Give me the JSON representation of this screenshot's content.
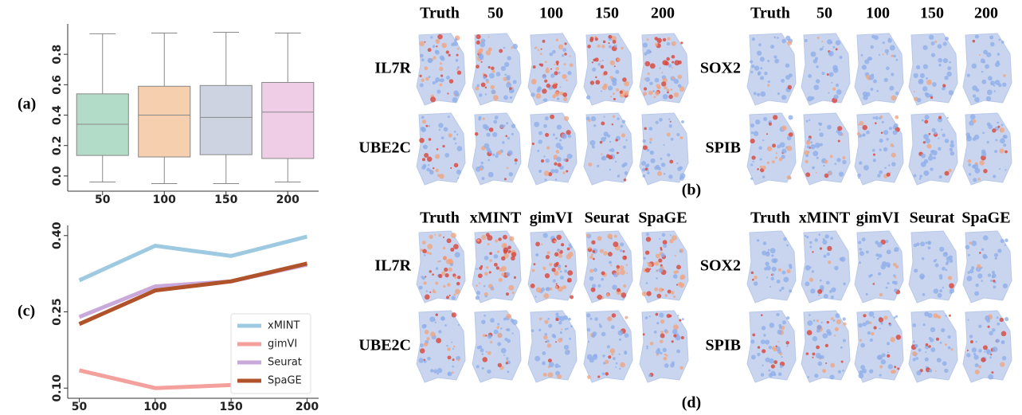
{
  "chart_data": [
    {
      "type": "box",
      "panel_label": "(a)",
      "categories": [
        "50",
        "100",
        "150",
        "200"
      ],
      "colors": [
        "#b3dcc8",
        "#f5cfae",
        "#cdd3e0",
        "#efcde6"
      ],
      "whisker_low": [
        -0.04,
        -0.05,
        -0.05,
        -0.04
      ],
      "q1": [
        0.135,
        0.125,
        0.14,
        0.115
      ],
      "median": [
        0.34,
        0.4,
        0.385,
        0.42
      ],
      "q3": [
        0.54,
        0.59,
        0.595,
        0.615
      ],
      "whisker_high": [
        0.935,
        0.94,
        0.945,
        0.94
      ],
      "ylim": [
        -0.1,
        1.0
      ],
      "yticks": [
        {
          "value": 0,
          "label": "0.0"
        },
        {
          "value": 0.2,
          "label": "0.2"
        },
        {
          "value": 0.4,
          "label": "0.4"
        },
        {
          "value": 0.6,
          "label": "0.6"
        },
        {
          "value": 0.8,
          "label": "0.8"
        }
      ]
    },
    {
      "type": "line",
      "panel_label": "(c)",
      "x": [
        50,
        100,
        150,
        200
      ],
      "xlim": [
        45,
        205
      ],
      "xticks": [
        50,
        100,
        150,
        200
      ],
      "ylim": [
        0.08,
        0.42
      ],
      "yticks": [
        {
          "value": 0.1,
          "label": "0.10"
        },
        {
          "value": 0.25,
          "label": "0.25"
        },
        {
          "value": 0.4,
          "label": "0.40"
        }
      ],
      "legend": "lower right",
      "series": [
        {
          "name": "xMINT",
          "color": "#9ecae1",
          "values": [
            0.312,
            0.38,
            0.36,
            0.398
          ]
        },
        {
          "name": "gimVI",
          "color": "#f4a09c",
          "values": [
            0.135,
            0.1,
            0.106,
            0.112
          ]
        },
        {
          "name": "Seurat",
          "color": "#c9a9d9",
          "values": [
            0.24,
            0.3,
            0.31,
            0.343
          ]
        },
        {
          "name": "SpaGE",
          "color": "#b0532a",
          "values": [
            0.226,
            0.292,
            0.31,
            0.345
          ]
        }
      ]
    }
  ],
  "map_grids": [
    {
      "label": "(b)",
      "columns": [
        "Truth",
        "50",
        "100",
        "150",
        "200"
      ],
      "left_rows": [
        "IL7R",
        "UBE2C"
      ],
      "right_rows": [
        "SOX2",
        "SPIB"
      ]
    },
    {
      "label": "(d)",
      "columns": [
        "Truth",
        "xMINT",
        "gimVI",
        "Seurat",
        "SpaGE"
      ],
      "left_rows": [
        "IL7R",
        "UBE2C"
      ],
      "right_rows": [
        "SOX2",
        "SPIB"
      ]
    }
  ]
}
